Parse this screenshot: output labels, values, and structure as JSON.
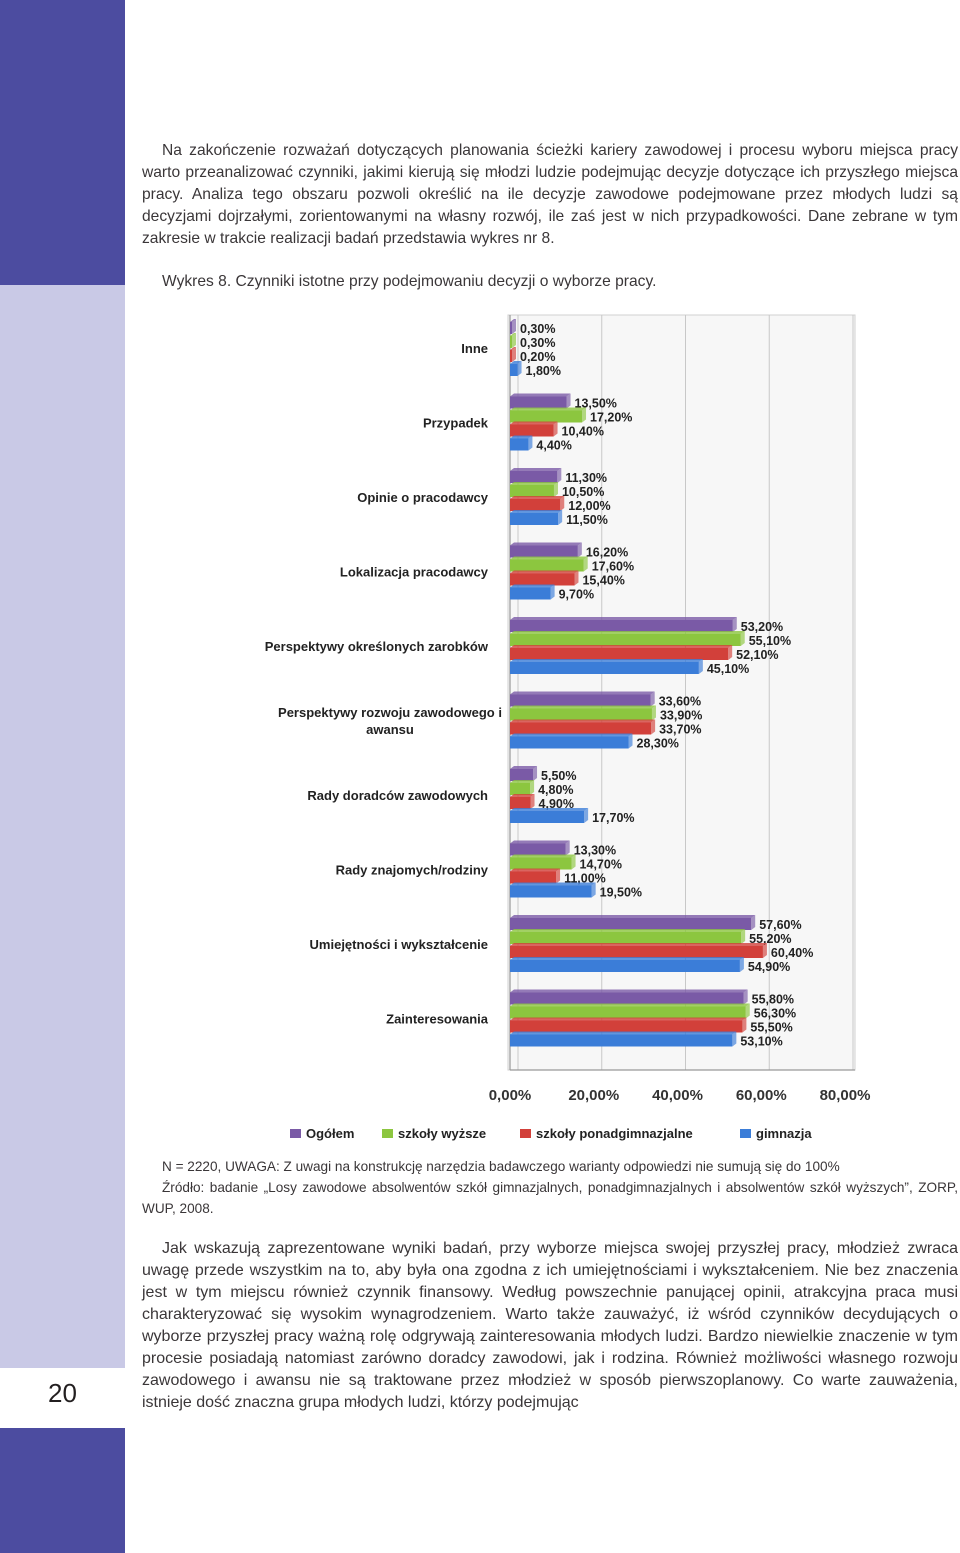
{
  "page_number": "20",
  "intro_paragraph": "Na zakończenie rozważań dotyczących planowania ścieżki kariery zawodowej i procesu wyboru miejsca pracy warto przeanalizować czynniki, jakimi kierują się młodzi ludzie podejmując decyzje dotyczące ich przyszłego miejsca pracy. Analiza tego obszaru pozwoli określić na ile decyzje zawodowe podejmowane przez młodych ludzi są decyzjami dojrzałymi, zorientowanymi na własny rozwój, ile zaś jest w nich przypadkowości. Dane zebrane w tym zakresie w trakcie realizacji badań przedstawia wykres nr 8.",
  "figure_caption": "Wykres 8. Czynniki istotne przy podejmowaniu decyzji o wyborze pracy.",
  "note_line": "N = 2220, UWAGA: Z uwagi na konstrukcję narzędzia badawczego warianty odpowiedzi nie sumują się do 100%",
  "source_line": "Źródło: badanie „Losy zawodowe absolwentów szkół gimnazjalnych, ponadgimnazjalnych i absolwentów szkół wyższych”, ZORP, WUP, 2008.",
  "conclusion_paragraph": "Jak wskazują zaprezentowane wyniki badań, przy wyborze miejsca swojej przyszłej pracy, młodzież zwraca uwagę przede wszystkim na to, aby była ona zgodna z ich umiejętnościami i wykształceniem. Nie bez znaczenia jest w tym miejscu również czynnik finansowy. Według powszechnie panującej opinii, atrakcyjna praca musi charakteryzować się wysokim wynagrodzeniem. Warto także zauważyć, iż wśród czynników decydujących o wyborze przyszłej pracy ważną rolę odgrywają zainteresowania młodych ludzi. Bardzo niewielkie znaczenie w tym procesie posiadają natomiast zarówno doradcy zawodowi, jak i rodzina. Również możliwości własnego rozwoju zawodowego i awansu nie są traktowane przez młodzież w sposób pierwszoplanowy. Co warte zauważenia, istnieje dość znaczna grupa młodych ludzi, którzy podejmując",
  "colors": {
    "sidebar_dark": "#4c4ca0",
    "sidebar_light": "#c9c9e6"
  },
  "chart_data": {
    "type": "bar",
    "orientation": "horizontal",
    "categories": [
      "Inne",
      "Przypadek",
      "Opinie o pracodawcy",
      "Lokalizacja pracodawcy",
      "Perspektywy określonych zarobków",
      "Perspektywy rozwoju zawodowego i awansu",
      "Rady doradców zawodowych",
      "Rady znajomych/rodziny",
      "Umiejętności i wykształcenie",
      "Zainteresowania"
    ],
    "category_lines": [
      [
        "Inne"
      ],
      [
        "Przypadek"
      ],
      [
        "Opinie o pracodawcy"
      ],
      [
        "Lokalizacja pracodawcy"
      ],
      [
        "Perspektywy określonych zarobków"
      ],
      [
        "Perspektywy rozwoju zawodowego i",
        "awansu"
      ],
      [
        "Rady doradców zawodowych"
      ],
      [
        "Rady znajomych/rodziny"
      ],
      [
        "Umiejętności i wykształcenie"
      ],
      [
        "Zainteresowania"
      ]
    ],
    "series": [
      {
        "name": "Ogółem",
        "color": "#7a5aa6",
        "values": [
          0.3,
          13.5,
          11.3,
          16.2,
          53.2,
          33.6,
          5.5,
          13.3,
          57.6,
          55.8
        ],
        "labels": [
          "0,30%",
          "13,50%",
          "11,30%",
          "16,20%",
          "53,20%",
          "33,60%",
          "5,50%",
          "13,30%",
          "57,60%",
          "55,80%"
        ]
      },
      {
        "name": "szkoły wyższe",
        "color": "#8cc63f",
        "values": [
          0.3,
          17.2,
          10.5,
          17.6,
          55.1,
          33.9,
          4.8,
          14.7,
          55.2,
          56.3
        ],
        "labels": [
          "0,30%",
          "17,20%",
          "10,50%",
          "17,60%",
          "55,10%",
          "33,90%",
          "4,80%",
          "14,70%",
          "55,20%",
          "56,30%"
        ]
      },
      {
        "name": "szkoły ponadgimnazjalne",
        "color": "#d2403a",
        "values": [
          0.2,
          10.4,
          12.0,
          15.4,
          52.1,
          33.7,
          4.9,
          11.0,
          60.4,
          55.5
        ],
        "labels": [
          "0,20%",
          "10,40%",
          "12,00%",
          "15,40%",
          "52,10%",
          "33,70%",
          "4,90%",
          "11,00%",
          "60,40%",
          "55,50%"
        ]
      },
      {
        "name": "gimnazja",
        "color": "#3b7dd8",
        "values": [
          1.8,
          4.4,
          11.5,
          9.7,
          45.1,
          28.3,
          17.7,
          19.5,
          54.9,
          53.1
        ],
        "labels": [
          "1,80%",
          "4,40%",
          "11,50%",
          "9,70%",
          "45,10%",
          "28,30%",
          "17,70%",
          "19,50%",
          "54,90%",
          "53,10%"
        ]
      }
    ],
    "xlim": [
      0,
      80
    ],
    "xticks": [
      "0,00%",
      "20,00%",
      "40,00%",
      "60,00%",
      "80,00%"
    ],
    "grid": true,
    "legend_position": "bottom"
  }
}
